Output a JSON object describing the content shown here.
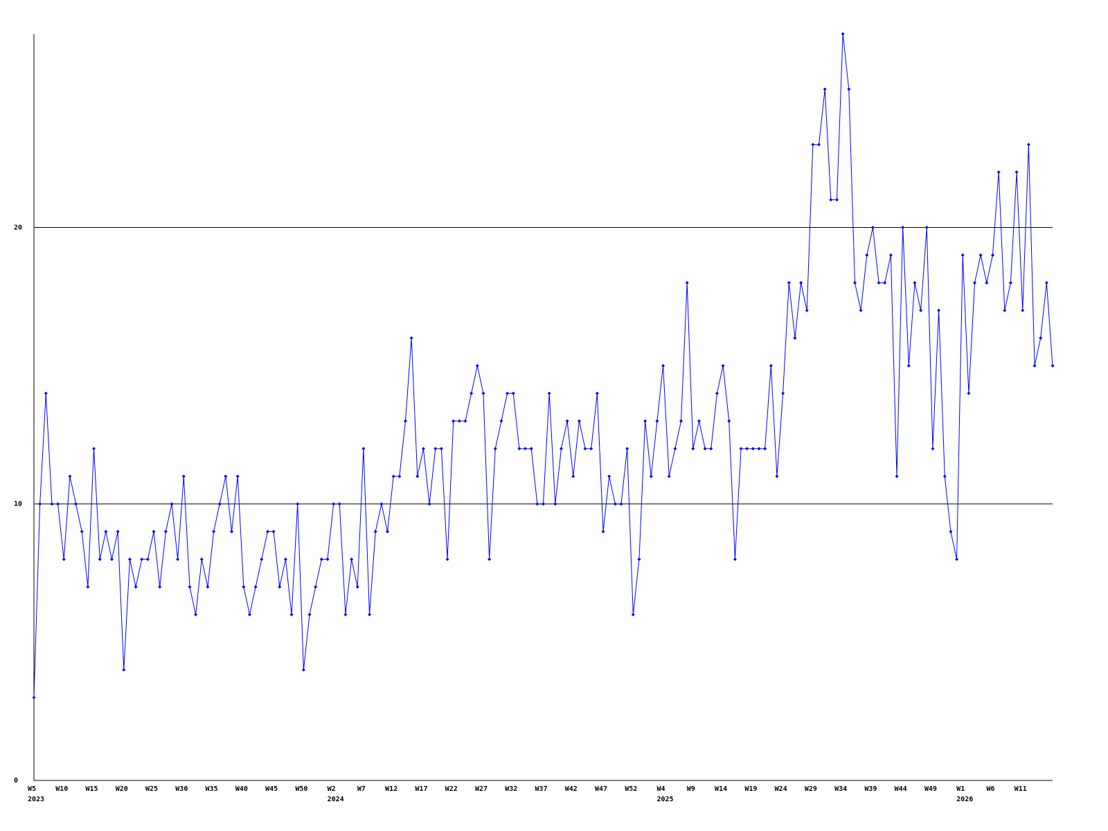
{
  "chart_data": {
    "type": "line",
    "color": "#0000ff",
    "grid": true,
    "categories": [
      "W5",
      null,
      null,
      null,
      null,
      "W10",
      null,
      null,
      null,
      null,
      "W15",
      null,
      null,
      null,
      null,
      "W20",
      null,
      null,
      null,
      null,
      "W25",
      null,
      null,
      null,
      null,
      "W30",
      null,
      null,
      null,
      null,
      "W35",
      null,
      null,
      null,
      null,
      "W40",
      null,
      null,
      null,
      null,
      "W45",
      null,
      null,
      null,
      null,
      "W50",
      null,
      null,
      null,
      null,
      "W2",
      null,
      null,
      null,
      null,
      "W7",
      null,
      null,
      null,
      null,
      "W12",
      null,
      null,
      null,
      null,
      "W17",
      null,
      null,
      null,
      null,
      "W22",
      null,
      null,
      null,
      null,
      "W27",
      null,
      null,
      null,
      null,
      "W32",
      null,
      null,
      null,
      null,
      "W37",
      null,
      null,
      null,
      null,
      "W42",
      null,
      null,
      null,
      null,
      "W47",
      null,
      null,
      null,
      null,
      "W52",
      null,
      null,
      null,
      null,
      "W4",
      null,
      null,
      null,
      null,
      "W9",
      null,
      null,
      null,
      null,
      "W14",
      null,
      null,
      null,
      null,
      "W19",
      null,
      null,
      null,
      null,
      "W24",
      null,
      null,
      null,
      null,
      "W29",
      null,
      null,
      null,
      null,
      "W34",
      null,
      null,
      null,
      null,
      "W39",
      null,
      null,
      null,
      null,
      "W44",
      null,
      null,
      null,
      null,
      "W49",
      null,
      null,
      null,
      null,
      "W1",
      null,
      null,
      null,
      null,
      "W6",
      null,
      null,
      null,
      null,
      "W11",
      null,
      null,
      null,
      null,
      null
    ],
    "years": [
      "2023",
      null,
      null,
      null,
      null,
      null,
      null,
      null,
      null,
      null,
      null,
      null,
      null,
      null,
      null,
      null,
      null,
      null,
      null,
      null,
      null,
      null,
      null,
      null,
      null,
      null,
      null,
      null,
      null,
      null,
      null,
      null,
      null,
      null,
      null,
      null,
      null,
      null,
      null,
      null,
      null,
      null,
      null,
      null,
      null,
      null,
      null,
      null,
      null,
      null,
      "2024",
      null,
      null,
      null,
      null,
      null,
      null,
      null,
      null,
      null,
      null,
      null,
      null,
      null,
      null,
      null,
      null,
      null,
      null,
      null,
      null,
      null,
      null,
      null,
      null,
      null,
      null,
      null,
      null,
      null,
      null,
      null,
      null,
      null,
      null,
      null,
      null,
      null,
      null,
      null,
      null,
      null,
      null,
      null,
      null,
      null,
      null,
      null,
      null,
      null,
      null,
      null,
      null,
      null,
      null,
      "2025",
      null,
      null,
      null,
      null,
      null,
      null,
      null,
      null,
      null,
      null,
      null,
      null,
      null,
      null,
      null,
      null,
      null,
      null,
      null,
      null,
      null,
      null,
      null,
      null,
      null,
      null,
      null,
      null,
      null,
      null,
      null,
      null,
      null,
      null,
      null,
      null,
      null,
      null,
      null,
      null,
      null,
      null,
      null,
      null,
      null,
      null,
      null,
      null,
      null,
      "2026",
      null,
      null,
      null,
      null,
      null,
      null,
      null,
      null,
      null,
      null,
      null,
      null,
      null,
      null,
      null
    ],
    "values": [
      3,
      10,
      14,
      10,
      10,
      8,
      11,
      10,
      9,
      7,
      12,
      8,
      9,
      8,
      9,
      4,
      8,
      7,
      8,
      8,
      9,
      7,
      9,
      10,
      8,
      11,
      7,
      6,
      8,
      7,
      9,
      10,
      11,
      9,
      11,
      7,
      6,
      7,
      8,
      9,
      9,
      7,
      8,
      6,
      10,
      4,
      6,
      7,
      8,
      8,
      10,
      10,
      6,
      8,
      7,
      12,
      6,
      9,
      10,
      9,
      11,
      11,
      13,
      16,
      11,
      12,
      10,
      12,
      12,
      8,
      13,
      13,
      13,
      14,
      15,
      14,
      8,
      12,
      13,
      14,
      14,
      12,
      12,
      12,
      10,
      10,
      14,
      10,
      12,
      13,
      11,
      13,
      12,
      12,
      14,
      9,
      11,
      10,
      10,
      12,
      6,
      8,
      13,
      11,
      13,
      15,
      11,
      12,
      13,
      18,
      12,
      13,
      12,
      12,
      14,
      15,
      13,
      8,
      12,
      12,
      12,
      12,
      12,
      15,
      11,
      14,
      18,
      16,
      18,
      17,
      23,
      23,
      25,
      21,
      21,
      27,
      25,
      18,
      17,
      19,
      20,
      18,
      18,
      19,
      11,
      20,
      15,
      18,
      17,
      20,
      12,
      17,
      11,
      9,
      8,
      19,
      14,
      18,
      19,
      18,
      19,
      22,
      17,
      18,
      22,
      17,
      23,
      15,
      16,
      18,
      15
    ],
    "ylim": [
      0,
      27
    ],
    "yticks": [
      0,
      10,
      20
    ]
  }
}
